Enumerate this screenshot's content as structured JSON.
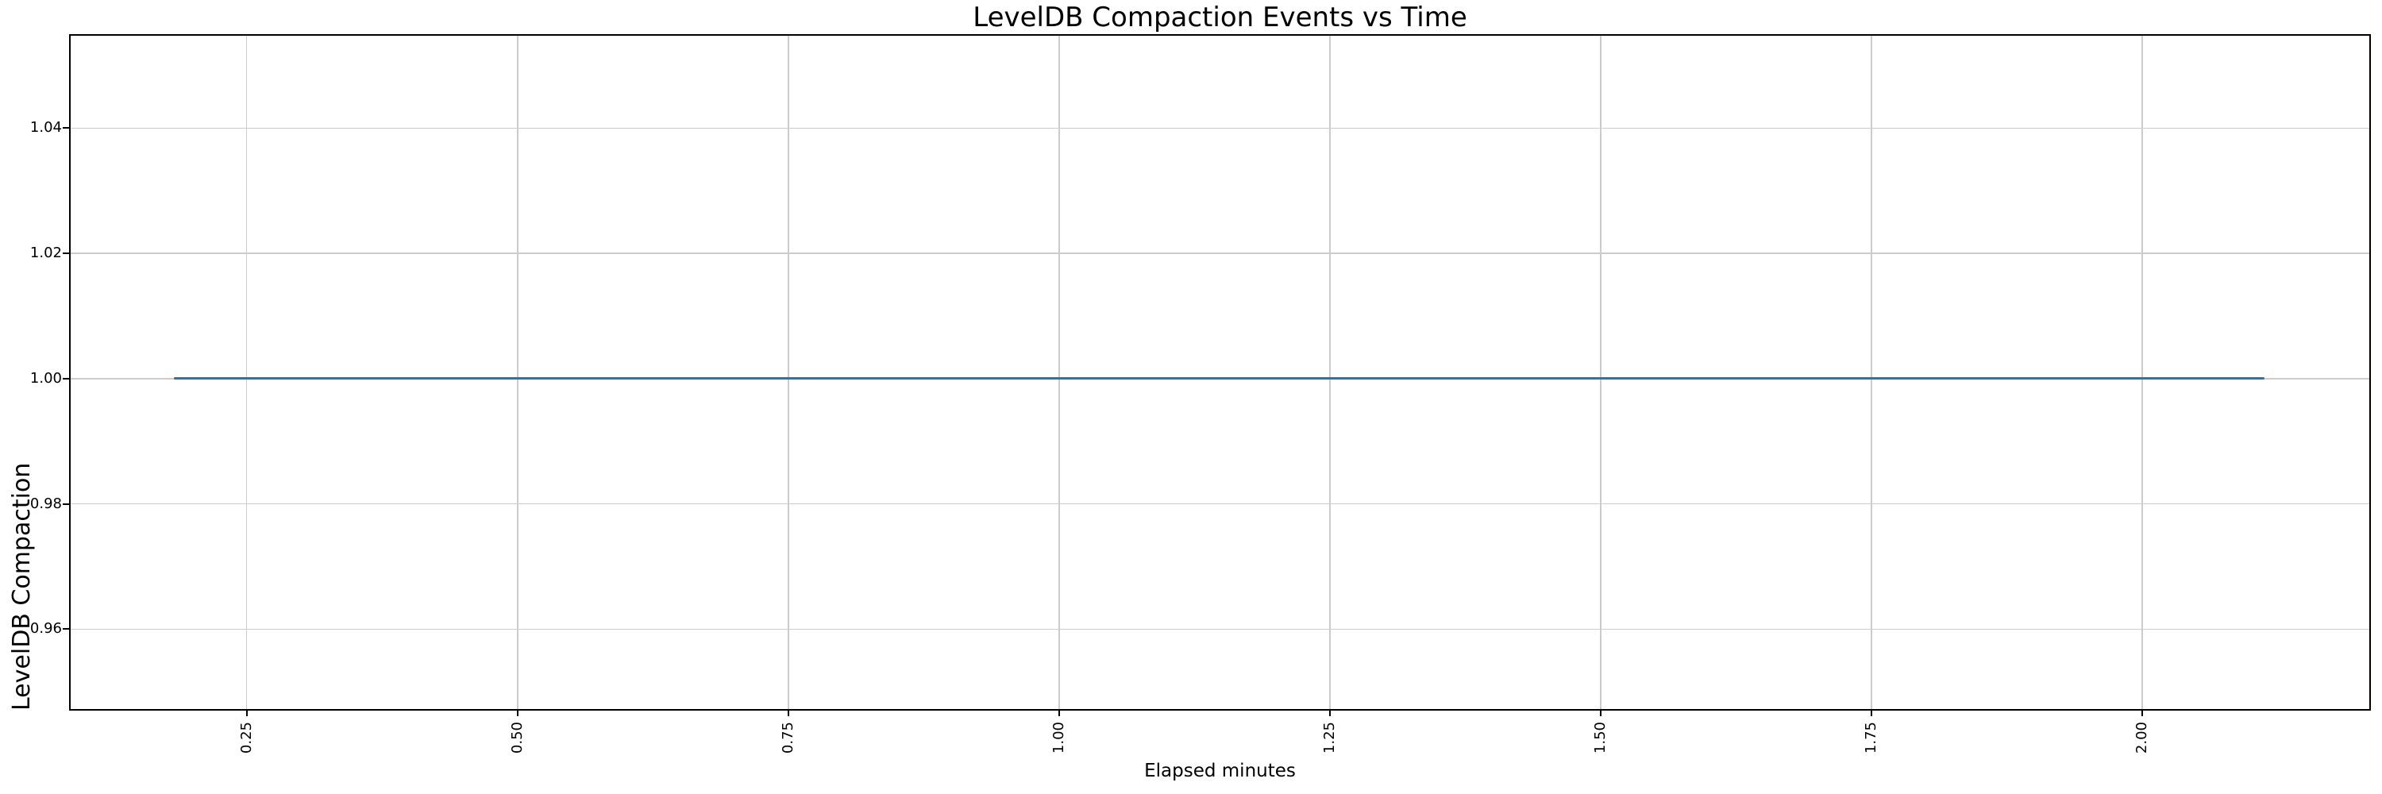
{
  "figure": {
    "title": "LevelDB Compaction Events vs Time",
    "xlabel": "Elapsed minutes",
    "ylabel": "LevelDB Compaction"
  },
  "chart_data": {
    "type": "line",
    "title": "LevelDB Compaction Events vs Time",
    "xlabel": "Elapsed minutes",
    "ylabel": "LevelDB Compaction",
    "x_tick_values": [
      0.25,
      0.5,
      0.75,
      1.0,
      1.25,
      1.5,
      1.75,
      2.0
    ],
    "x_tick_labels": [
      "0.25",
      "0.50",
      "0.75",
      "1.00",
      "1.25",
      "1.50",
      "1.75",
      "2.00"
    ],
    "y_tick_values": [
      0.96,
      0.98,
      1.0,
      1.02,
      1.04
    ],
    "y_tick_labels": [
      "0.96",
      "0.98",
      "1.00",
      "1.02",
      "1.04"
    ],
    "xlim": [
      0.086,
      2.211
    ],
    "ylim": [
      0.947,
      1.055
    ],
    "grid": true,
    "grid_color": "#cccccc",
    "legend": "none",
    "background": "#ffffff",
    "series": [
      {
        "name": "LevelDB Compaction",
        "color": "#1f77b4",
        "points": [
          {
            "x": 0.183,
            "y": 1.0
          },
          {
            "x": 2.113,
            "y": 1.0
          }
        ],
        "description": "Constant value 1.0 from ~0.18 to ~2.11 elapsed minutes"
      }
    ]
  }
}
